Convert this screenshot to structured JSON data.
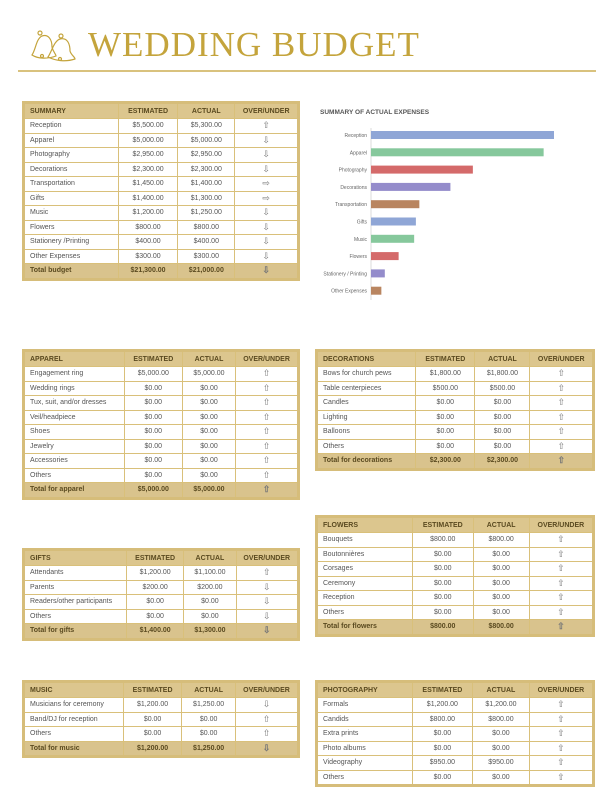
{
  "header": {
    "title": "WEDDING BUDGET",
    "logo": "wedding-bells-icon",
    "accent": "#c4a43c"
  },
  "columns": {
    "estimated": "ESTIMATED",
    "actual": "ACTUAL",
    "over_under": "OVER/UNDER"
  },
  "arrows": {
    "up": "⇧",
    "down": "⇩",
    "right": "⇨"
  },
  "tables": [
    {
      "id": "summary",
      "title": "SUMMARY",
      "rows": [
        [
          "Reception",
          "$5,500.00",
          "$5,300.00",
          "up"
        ],
        [
          "Apparel",
          "$5,000.00",
          "$5,000.00",
          "down"
        ],
        [
          "Photography",
          "$2,950.00",
          "$2,950.00",
          "down"
        ],
        [
          "Decorations",
          "$2,300.00",
          "$2,300.00",
          "down"
        ],
        [
          "Transportation",
          "$1,450.00",
          "$1,400.00",
          "right"
        ],
        [
          "Gifts",
          "$1,400.00",
          "$1,300.00",
          "right"
        ],
        [
          "Music",
          "$1,200.00",
          "$1,250.00",
          "down"
        ],
        [
          "Flowers",
          "$800.00",
          "$800.00",
          "down"
        ],
        [
          "Stationery /Printing",
          "$400.00",
          "$400.00",
          "down"
        ],
        [
          "Other Expenses",
          "$300.00",
          "$300.00",
          "down"
        ]
      ],
      "total": [
        "Total budget",
        "$21,300.00",
        "$21,000.00",
        "down"
      ]
    },
    {
      "id": "apparel",
      "title": "APPAREL",
      "rows": [
        [
          "Engagement ring",
          "$5,000.00",
          "$5,000.00",
          "up"
        ],
        [
          "Wedding rings",
          "$0.00",
          "$0.00",
          "up"
        ],
        [
          "Tux, suit, and/or dresses",
          "$0.00",
          "$0.00",
          "up"
        ],
        [
          "Veil/headpiece",
          "$0.00",
          "$0.00",
          "up"
        ],
        [
          "Shoes",
          "$0.00",
          "$0.00",
          "up"
        ],
        [
          "Jewelry",
          "$0.00",
          "$0.00",
          "up"
        ],
        [
          "Accessories",
          "$0.00",
          "$0.00",
          "up"
        ],
        [
          "Others",
          "$0.00",
          "$0.00",
          "up"
        ]
      ],
      "total": [
        "Total for apparel",
        "$5,000.00",
        "$5,000.00",
        "up"
      ]
    },
    {
      "id": "gifts",
      "title": "GIFTS",
      "rows": [
        [
          "Attendants",
          "$1,200.00",
          "$1,100.00",
          "up"
        ],
        [
          "Parents",
          "$200.00",
          "$200.00",
          "down"
        ],
        [
          "Readers/other participants",
          "$0.00",
          "$0.00",
          "down"
        ],
        [
          "Others",
          "$0.00",
          "$0.00",
          "down"
        ]
      ],
      "total": [
        "Total for gifts",
        "$1,400.00",
        "$1,300.00",
        "down"
      ]
    },
    {
      "id": "music",
      "title": "MUSIC",
      "rows": [
        [
          "Musicians for ceremony",
          "$1,200.00",
          "$1,250.00",
          "down"
        ],
        [
          "Band/DJ for reception",
          "$0.00",
          "$0.00",
          "up"
        ],
        [
          "Others",
          "$0.00",
          "$0.00",
          "up"
        ]
      ],
      "total": [
        "Total for music",
        "$1,200.00",
        "$1,250.00",
        "down"
      ]
    },
    {
      "id": "decorations",
      "title": "DECORATIONS",
      "rows": [
        [
          "Bows for church pews",
          "$1,800.00",
          "$1,800.00",
          "up"
        ],
        [
          "Table centerpieces",
          "$500.00",
          "$500.00",
          "up"
        ],
        [
          "Candles",
          "$0.00",
          "$0.00",
          "up"
        ],
        [
          "Lighting",
          "$0.00",
          "$0.00",
          "up"
        ],
        [
          "Balloons",
          "$0.00",
          "$0.00",
          "up"
        ],
        [
          "Others",
          "$0.00",
          "$0.00",
          "up"
        ]
      ],
      "total": [
        "Total for decorations",
        "$2,300.00",
        "$2,300.00",
        "up"
      ]
    },
    {
      "id": "flowers",
      "title": "FLOWERS",
      "rows": [
        [
          "Bouquets",
          "$800.00",
          "$800.00",
          "up"
        ],
        [
          "Boutonnières",
          "$0.00",
          "$0.00",
          "up"
        ],
        [
          "Corsages",
          "$0.00",
          "$0.00",
          "up"
        ],
        [
          "Ceremony",
          "$0.00",
          "$0.00",
          "up"
        ],
        [
          "Reception",
          "$0.00",
          "$0.00",
          "up"
        ],
        [
          "Others",
          "$0.00",
          "$0.00",
          "up"
        ]
      ],
      "total": [
        "Total for flowers",
        "$800.00",
        "$800.00",
        "up"
      ]
    },
    {
      "id": "photography",
      "title": "PHOTOGRAPHY",
      "rows": [
        [
          "Formals",
          "$1,200.00",
          "$1,200.00",
          "up"
        ],
        [
          "Candids",
          "$800.00",
          "$800.00",
          "up"
        ],
        [
          "Extra prints",
          "$0.00",
          "$0.00",
          "up"
        ],
        [
          "Photo albums",
          "$0.00",
          "$0.00",
          "up"
        ],
        [
          "Videography",
          "$950.00",
          "$950.00",
          "up"
        ],
        [
          "Others",
          "$0.00",
          "$0.00",
          "up"
        ]
      ]
    }
  ],
  "chart_data": {
    "type": "bar",
    "orientation": "horizontal",
    "title": "SUMMARY OF ACTUAL EXPENSES",
    "categories": [
      "Reception",
      "Apparel",
      "Photography",
      "Decorations",
      "Transportation",
      "Gifts",
      "Music",
      "Flowers",
      "Stationery / Printing",
      "Other Expenses"
    ],
    "values": [
      5300,
      5000,
      2950,
      2300,
      1400,
      1300,
      1250,
      800,
      400,
      300
    ],
    "colors": [
      "#8fa6d6",
      "#86c89c",
      "#d46a6a",
      "#948ccb",
      "#b98560",
      "#8fa6d6",
      "#86c89c",
      "#d46a6a",
      "#948ccb",
      "#b98560"
    ],
    "grid": false,
    "legend": "none"
  }
}
